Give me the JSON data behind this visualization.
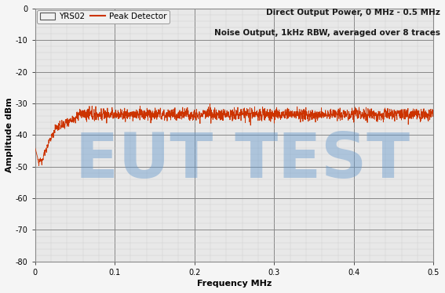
{
  "title_right_line1": "Direct Output Power, 0 MHz - 0.5 MHz",
  "title_right_line2": "Noise Output, 1kHz RBW, averaged over 8 traces",
  "xlabel": "Frequency MHz",
  "ylabel": "Amplitude dBm",
  "xlim": [
    0,
    0.5
  ],
  "ylim": [
    -80,
    0
  ],
  "xticks": [
    0.0,
    0.1,
    0.2,
    0.3,
    0.4,
    0.5
  ],
  "yticks": [
    0,
    -10,
    -20,
    -30,
    -40,
    -50,
    -60,
    -70,
    -80
  ],
  "legend_label_box": "YRS02",
  "legend_label_line": "Peak Detector",
  "line_color": "#cc3300",
  "watermark_text": "EUT TEST",
  "watermark_color": "#6699cc",
  "watermark_alpha": 0.45,
  "plot_bg_color": "#e8e8e8",
  "fig_bg_color": "#f5f5f5",
  "major_grid_color": "#888888",
  "minor_grid_color": "#cccccc",
  "title_fontsize": 7.5,
  "axis_label_fontsize": 8,
  "tick_fontsize": 7,
  "legend_fontsize": 7.5,
  "watermark_fontsize": 58
}
